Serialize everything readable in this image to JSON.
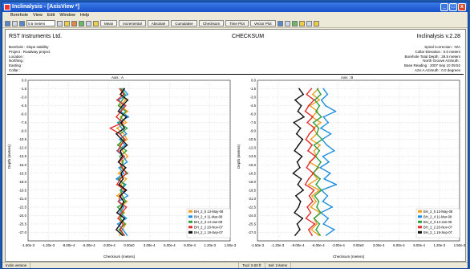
{
  "window": {
    "title": "Inclinalysis - [AxisView *]",
    "min": "_",
    "max": "□",
    "close": "x"
  },
  "menu": [
    "Borehole",
    "View",
    "Edit",
    "Window",
    "Help"
  ],
  "toolbar": {
    "interval_value": "0.5 meters",
    "buttons": [
      "Mean",
      "Incremental",
      "Absolute",
      "Cumulative",
      "Checksum",
      "Time Plot",
      "Vector Plot"
    ]
  },
  "header": {
    "company": "RST Instruments Ltd.",
    "title": "CHECKSUM",
    "version": "Inclinalysis v.2.28",
    "left": [
      "Borehole : Slope stability",
      "Project : Roadway project",
      "Location :",
      "Northing :",
      "Easting :",
      "Collar :"
    ],
    "right": [
      "Spiral Correction : N/A",
      "Collar Elevation : 0.0 meters",
      "Borehole Total Depth : 28.5 meters",
      "North Groove Azimuth :",
      "Base Reading : 2007 Sep 10 09:52",
      "Azis A Azimuth : 0.0 degrees"
    ]
  },
  "colors": {
    "orange": "#f0a020",
    "blue": "#2090e0",
    "green": "#30a040",
    "red": "#e03030",
    "black": "#111111"
  },
  "chart_data": [
    {
      "type": "line",
      "title": "Axis : A",
      "xlabel": "Checksum (meters)",
      "ylabel": "Depth (meters)",
      "xlim": [
        -0.0015,
        0.0015
      ],
      "ylim": [
        -28.5,
        0
      ],
      "x_ticks": [
        "-1.50e-3",
        "-1.20e-3",
        "-9.00e-4",
        "-6.00e-4",
        "-3.00e-4",
        "0.00e0",
        "3.00e-4",
        "6.00e-4",
        "9.00e-4",
        "1.20e-3",
        "1.50e-3"
      ],
      "y_ticks": [
        "0.0",
        "-1.5",
        "-3.0",
        "-4.5",
        "-6.0",
        "-7.5",
        "-9.0",
        "-10.5",
        "-12.0",
        "-13.5",
        "-15.0",
        "-16.5",
        "-18.0",
        "-19.5",
        "-21.0",
        "-22.5",
        "-24.0",
        "-25.5",
        "-27.0"
      ],
      "depths": [
        -1.5,
        -2.5,
        -3.5,
        -4.5,
        -5.5,
        -6.5,
        -7.5,
        -8.5,
        -9.5,
        -10.5,
        -11.5,
        -12.5,
        -13.5,
        -14.5,
        -15.5,
        -16.5,
        -17.5,
        -18.5,
        -19.5,
        -20.5,
        -21.5,
        -22.5,
        -23.5,
        -24.5,
        -25.5,
        -26.5,
        -27.5
      ],
      "series": [
        {
          "name": "BH_2_5 13-May-08",
          "color": "#f0a020",
          "values": [
            -0.0001,
            -0.00012,
            -5e-05,
            -0.00014,
            -2e-05,
            -0.00013,
            -4e-05,
            -0.00018,
            -8e-05,
            -3e-05,
            -0.00015,
            -0.0001,
            -2e-05,
            -0.00011,
            -6e-05,
            -0.00016,
            -4e-05,
            -0.00012,
            -8e-05,
            -0.00018,
            -3e-05,
            -0.00013,
            -7e-05,
            -0.00017,
            -5e-05,
            -0.0001,
            -0.00014
          ]
        },
        {
          "name": "BH_2_4 11-Mar-08",
          "color": "#2090e0",
          "values": [
            -9e-05,
            -2e-05,
            -0.00016,
            -7e-05,
            -0.00013,
            -1e-05,
            -0.00017,
            -0.00011,
            -4e-05,
            -0.00014,
            -6e-05,
            -0.00018,
            -9e-05,
            -3e-05,
            -0.00015,
            -8e-05,
            -0.00019,
            -5e-05,
            -0.00012,
            -2e-05,
            -0.00016,
            -8e-05,
            -0.00014,
            -4e-05,
            -0.00017,
            -9e-05,
            -3e-05
          ]
        },
        {
          "name": "BH_2_3 14-Jan-08",
          "color": "#30a040",
          "values": [
            -0.00012,
            -6e-05,
            -0.0001,
            -0.00016,
            -5e-05,
            -0.00011,
            -0.00015,
            -3e-05,
            -0.00013,
            -8e-05,
            -0.00017,
            -4e-05,
            -0.00014,
            -9e-05,
            -0.00012,
            -2e-05,
            -0.00016,
            -7e-05,
            -0.00013,
            -0.0001,
            -5e-05,
            -0.00017,
            -9e-05,
            -0.00013,
            -6e-05,
            -0.00015,
            -8e-05
          ]
        },
        {
          "name": "BH_2_2 20-Nov-07",
          "color": "#e03030",
          "values": [
            -0.00014,
            -8e-05,
            -0.00018,
            -5e-05,
            -0.00012,
            -0.00019,
            -9e-05,
            -0.00028,
            -0.00014,
            -6e-05,
            -0.00012,
            -0.00017,
            -7e-05,
            -0.00015,
            -0.0001,
            -4e-05,
            -0.00013,
            -0.00018,
            -6e-05,
            -0.00012,
            -0.00016,
            -4e-05,
            -0.00011,
            -0.00016,
            -9e-05,
            -0.00013,
            -7e-05
          ]
        },
        {
          "name": "BH_2_1 19-Sep-07",
          "color": "#111111",
          "values": [
            -7e-05,
            -0.00013,
            -2e-05,
            -0.0001,
            -0.00016,
            -4e-05,
            -0.00012,
            -7e-05,
            -0.00019,
            -0.00011,
            -3e-05,
            -0.00013,
            -0.0001,
            -0.00016,
            -5e-05,
            -0.00012,
            -9e-05,
            -0.00015,
            -4e-05,
            -0.00014,
            -8e-05,
            -0.00011,
            -0.00018,
            -7e-05,
            -0.00013,
            -0.00019,
            -0.0001
          ]
        }
      ]
    },
    {
      "type": "line",
      "title": "Axis : B",
      "xlabel": "Checksum (meters)",
      "ylabel": "Depth (meters)",
      "xlim": [
        -0.0015,
        0.0015
      ],
      "ylim": [
        -28.5,
        0
      ],
      "x_ticks": [
        "-1.50e-3",
        "-1.20e-3",
        "-9.00e-4",
        "-6.00e-4",
        "-3.00e-4",
        "0.00e0",
        "3.00e-4",
        "6.00e-4",
        "9.00e-4",
        "1.20e-3",
        "1.50e-3"
      ],
      "y_ticks": [
        "0.0",
        "-1.5",
        "-3.0",
        "-4.5",
        "-6.0",
        "-7.5",
        "-9.0",
        "-10.5",
        "-12.0",
        "-13.5",
        "-15.0",
        "-16.5",
        "-18.0",
        "-19.5",
        "-21.0",
        "-22.5",
        "-24.0",
        "-25.5",
        "-27.0"
      ],
      "depths": [
        -1.5,
        -2.5,
        -3.5,
        -4.5,
        -5.5,
        -6.5,
        -7.5,
        -8.5,
        -9.5,
        -10.5,
        -11.5,
        -12.5,
        -13.5,
        -14.5,
        -15.5,
        -16.5,
        -17.5,
        -18.5,
        -19.5,
        -20.5,
        -21.5,
        -22.5,
        -23.5,
        -24.5,
        -25.5,
        -26.5,
        -27.5
      ],
      "series": [
        {
          "name": "BH_2_5 13-May-08",
          "color": "#f0a020",
          "values": [
            -0.0006,
            -0.00068,
            -0.00058,
            -0.00072,
            -0.00061,
            -0.00069,
            -0.00056,
            -0.00067,
            -0.00062,
            -0.00071,
            -0.00057,
            -0.00066,
            -0.00063,
            -0.00073,
            -0.00059,
            -0.00068,
            -0.00061,
            -0.00074,
            -0.00058,
            -0.00069,
            -0.00063,
            -0.00071,
            -0.00057,
            -0.00066,
            -0.00062,
            -0.0007,
            -0.00059
          ]
        },
        {
          "name": "BH_2_4 11-Mar-08",
          "color": "#2090e0",
          "values": [
            -0.00052,
            -0.00046,
            -0.00055,
            -0.00049,
            -0.00034,
            -0.00052,
            -0.00045,
            -0.00056,
            -0.00041,
            -0.00054,
            -0.00047,
            -0.00036,
            -0.00053,
            -0.00044,
            -0.00057,
            -0.00042,
            -0.00051,
            -0.00033,
            -0.00055,
            -0.00046,
            -0.00053,
            -0.00039,
            -0.00056,
            -0.00045,
            -0.00052,
            -0.00036,
            -0.00048
          ]
        },
        {
          "name": "BH_2_3 14-Jan-08",
          "color": "#30a040",
          "values": [
            -0.00061,
            -0.00056,
            -0.00065,
            -0.00058,
            -0.00063,
            -0.00055,
            -0.00067,
            -0.00059,
            -0.00062,
            -0.00054,
            -0.00066,
            -0.00058,
            -0.00064,
            -0.00056,
            -0.00061,
            -0.00067,
            -0.00057,
            -0.00063,
            -0.00055,
            -0.00065,
            -0.00059,
            -0.00062,
            -0.00056,
            -0.00066,
            -0.00058,
            -0.00063,
            -0.00057
          ]
        },
        {
          "name": "BH_2_2 20-Nov-07",
          "color": "#e03030",
          "values": [
            -0.0007,
            -0.00077,
            -0.00066,
            -0.00074,
            -0.00079,
            -0.00068,
            -0.00076,
            -0.00065,
            -0.00073,
            -0.00078,
            -0.00069,
            -0.00075,
            -0.00064,
            -0.00072,
            -0.00077,
            -0.00067,
            -0.00074,
            -0.00079,
            -0.00066,
            -0.00073,
            -0.00068,
            -0.00076,
            -0.00071,
            -0.00078,
            -0.00065,
            -0.00074,
            -0.00069
          ]
        },
        {
          "name": "BH_2_1 19-Sep-07",
          "color": "#111111",
          "values": [
            -0.00088,
            -0.00082,
            -0.00094,
            -0.00085,
            -0.0009,
            -0.00081,
            -0.00096,
            -0.00086,
            -0.00092,
            -0.00083,
            -0.00089,
            -0.00095,
            -0.00084,
            -0.00091,
            -0.00087,
            -0.00097,
            -0.00085,
            -0.0009,
            -0.00082,
            -0.00093,
            -0.00086,
            -0.00089,
            -0.00095,
            -0.00083,
            -0.00091,
            -0.00087,
            -0.00094
          ]
        }
      ]
    }
  ],
  "coords": {
    "left": "(0.00e0 , 0.00)",
    "right": "(4.75e-3 , -12.0)"
  },
  "status": [
    "Inclin version",
    "",
    "Tool: 0.00 ft",
    "Sel: 2 items"
  ]
}
